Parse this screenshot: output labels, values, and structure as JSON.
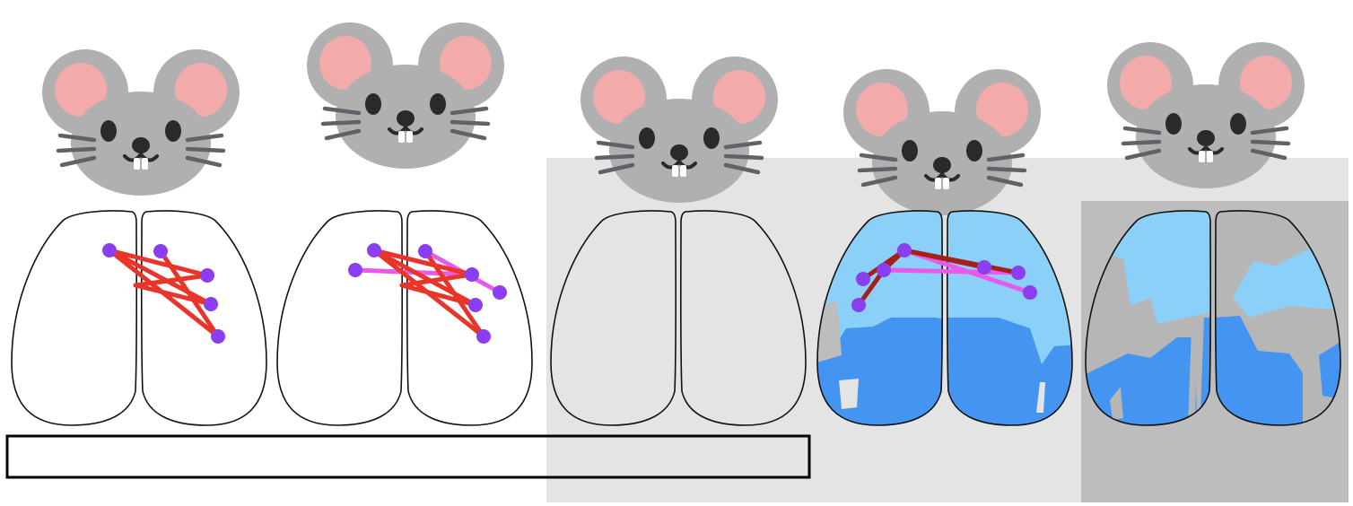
{
  "colors": {
    "panel_light": "#e4e4e4",
    "panel_dark": "#bdbdbd",
    "mouse_gray": "#b0b0b0",
    "mouse_ear_inner": "#f2aaaa",
    "mouse_eye": "#2a2a2a",
    "mouse_whisker": "#5f6368",
    "tooth": "#ffffff",
    "brain_outline": "#111111",
    "region_light_blue": "#8ad0f8",
    "region_blue": "#4495f2",
    "region_gray": "#b6b6b6",
    "node_purple": "#8a3ef0",
    "edge_red": "#e8352a",
    "edge_magenta": "#ea5aea",
    "edge_dark_red": "#a6201a"
  },
  "mice": [
    {
      "id": "mouse-1"
    },
    {
      "id": "mouse-2"
    },
    {
      "id": "mouse-3"
    },
    {
      "id": "mouse-4"
    },
    {
      "id": "mouse-5"
    }
  ],
  "brains": [
    {
      "id": "brain-1",
      "nodes": 5,
      "edges_red": 5,
      "edges_magenta": 0,
      "edges_dark_red": 0,
      "fill": "none"
    },
    {
      "id": "brain-2",
      "nodes": 7,
      "edges_red": 5,
      "edges_magenta": 3,
      "edges_dark_red": 0,
      "fill": "none"
    },
    {
      "id": "brain-3",
      "nodes": 0,
      "edges_red": 0,
      "edges_magenta": 0,
      "edges_dark_red": 0,
      "fill": "none"
    },
    {
      "id": "brain-4",
      "nodes": 7,
      "edges_red": 0,
      "edges_magenta": 2,
      "edges_dark_red": 5,
      "fill": "blue-regions"
    },
    {
      "id": "brain-5",
      "nodes": 0,
      "edges_red": 0,
      "edges_magenta": 0,
      "edges_dark_red": 0,
      "fill": "blue-and-gray-regions"
    }
  ],
  "caption_box": {
    "text": ""
  }
}
